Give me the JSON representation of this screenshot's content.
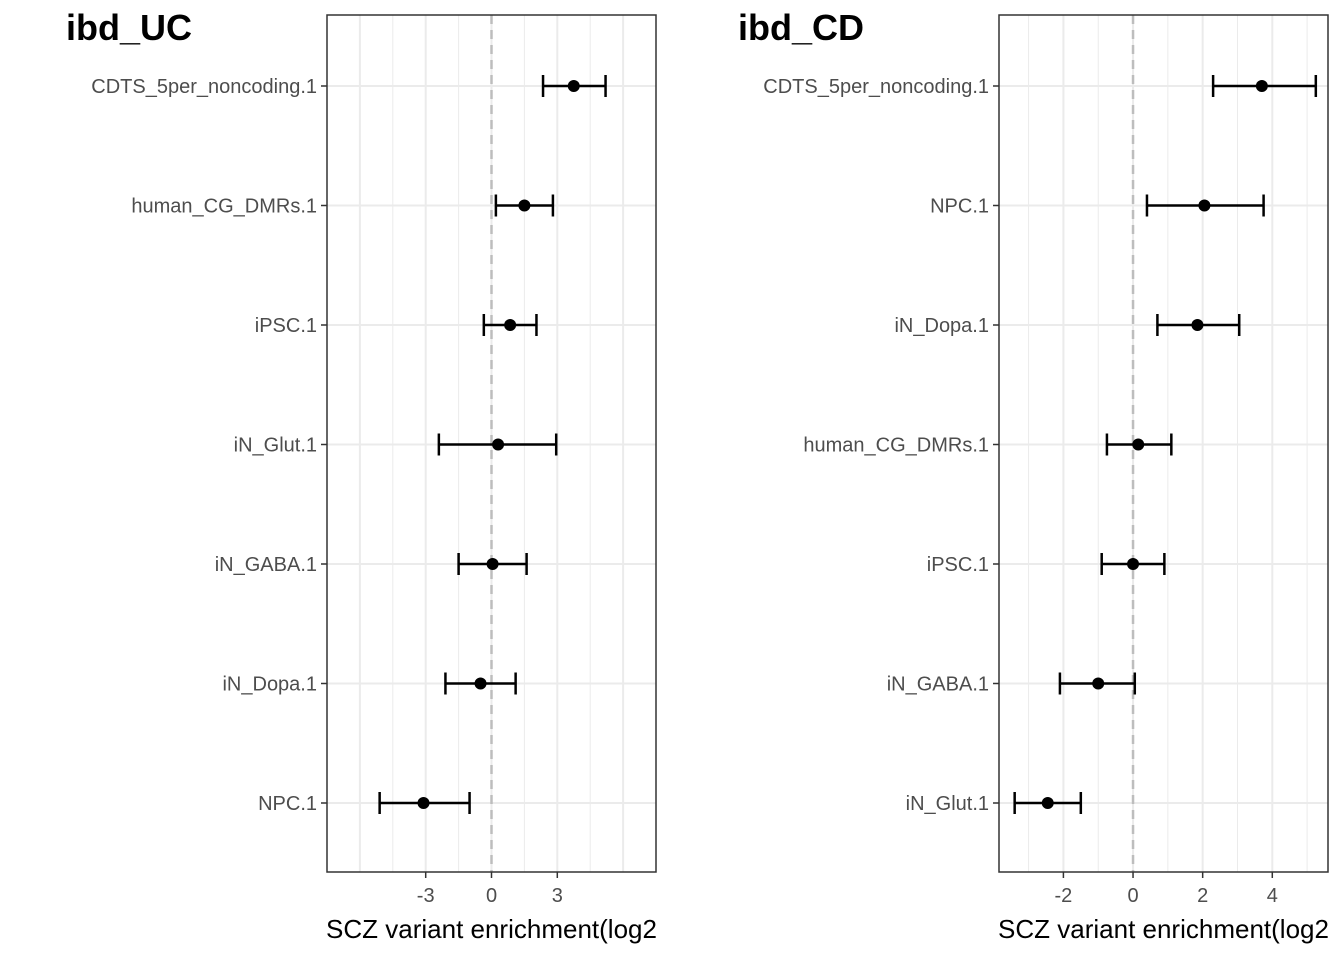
{
  "chart_data": [
    {
      "type": "scatter",
      "title": "ibd_UC",
      "xlabel": "SCZ variant enrichment(log2",
      "xlim": [
        -7.5,
        7.5
      ],
      "xticks": [
        -3,
        0,
        3
      ],
      "reference_line": 0,
      "grid": true,
      "categories": [
        "CDTS_5per_noncoding.1",
        "human_CG_DMRs.1",
        "iPSC.1",
        "iN_Glut.1",
        "iN_GABA.1",
        "iN_Dopa.1",
        "NPC.1"
      ],
      "estimate": [
        3.75,
        1.5,
        0.85,
        0.3,
        0.05,
        -0.5,
        -3.1
      ],
      "ci_low": [
        2.35,
        0.2,
        -0.35,
        -2.4,
        -1.5,
        -2.1,
        -5.1
      ],
      "ci_high": [
        5.2,
        2.8,
        2.05,
        2.95,
        1.6,
        1.1,
        -1.0
      ]
    },
    {
      "type": "scatter",
      "title": "ibd_CD",
      "xlabel": "SCZ variant enrichment(log2",
      "xlim": [
        -3.85,
        5.6
      ],
      "xticks": [
        -2,
        0,
        2,
        4
      ],
      "reference_line": 0,
      "grid": true,
      "categories": [
        "CDTS_5per_noncoding.1",
        "NPC.1",
        "iN_Dopa.1",
        "human_CG_DMRs.1",
        "iPSC.1",
        "iN_GABA.1",
        "iN_Glut.1"
      ],
      "estimate": [
        3.7,
        2.05,
        1.85,
        0.15,
        0.0,
        -1.0,
        -2.45
      ],
      "ci_low": [
        2.3,
        0.4,
        0.7,
        -0.75,
        -0.9,
        -2.1,
        -3.4
      ],
      "ci_high": [
        5.25,
        3.75,
        3.05,
        1.1,
        0.9,
        0.05,
        -1.5
      ]
    }
  ]
}
